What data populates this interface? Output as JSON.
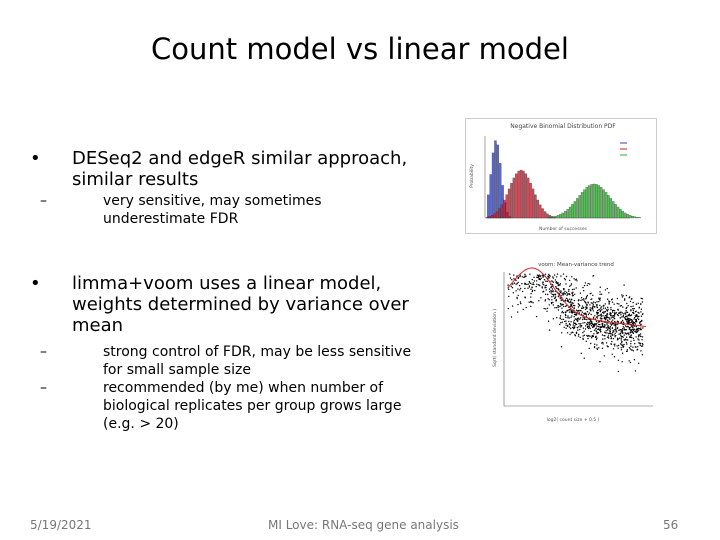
{
  "title": "Count model vs linear model",
  "bullets": [
    {
      "lines": [
        "DESeq2 and edgeR similar approach,",
        "similar results"
      ],
      "subbullets": [
        {
          "lines": [
            "very sensitive, may sometimes",
            "underestimate FDR"
          ]
        }
      ]
    },
    {
      "lines": [
        "limma+voom uses a linear model,",
        "weights determined by variance over",
        "mean"
      ],
      "subbullets": [
        {
          "lines": [
            "strong control of FDR, may be less sensitive",
            "for small sample size"
          ]
        },
        {
          "lines": [
            "recommended (by me) when number of",
            "biological replicates per group grows large",
            "(e.g. > 20)"
          ]
        }
      ]
    }
  ],
  "figures": [
    {
      "title": "Negative Binomial Distribution PDF",
      "xlabel": "Number of successes",
      "ylabel": "Probability"
    },
    {
      "title": "voom: Mean-variance trend",
      "xlabel": "log2( count size + 0.5 )",
      "ylabel": "Sqrt( standard deviation )"
    }
  ],
  "footer": {
    "date": "5/19/2021",
    "center": "MI Love: RNA-seq gene analysis",
    "page": "56"
  }
}
